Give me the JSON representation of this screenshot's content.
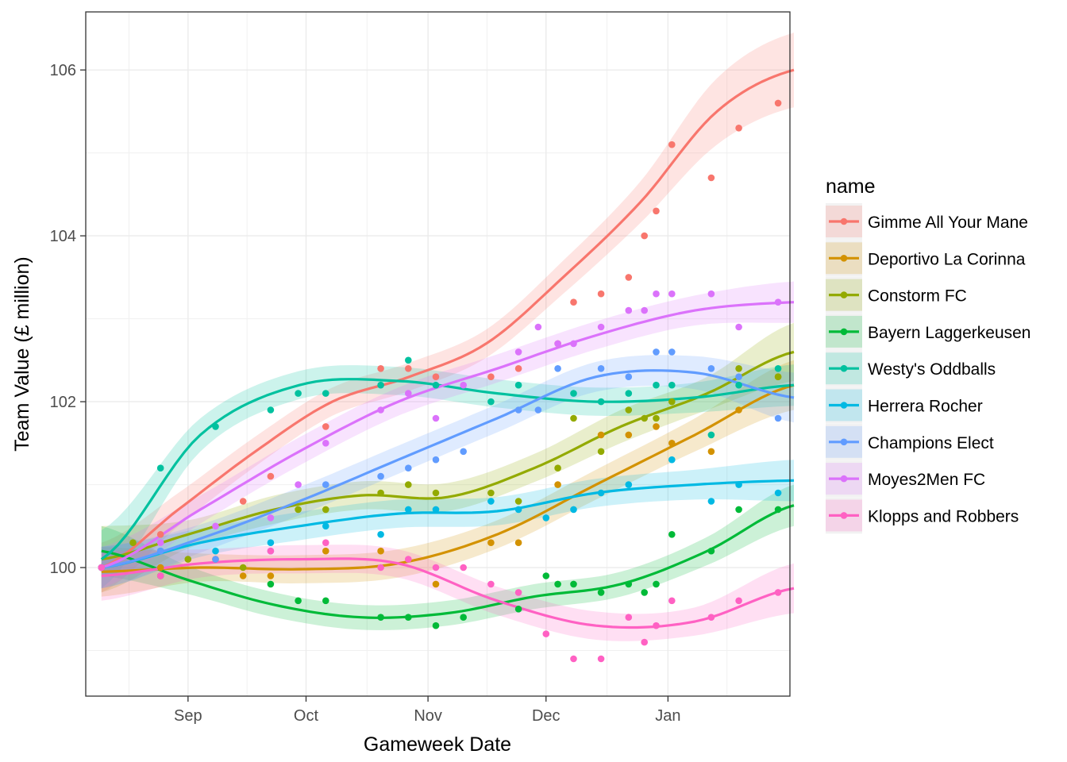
{
  "chart_data": {
    "type": "scatter",
    "title": "",
    "xlabel": "Gameweek Date",
    "ylabel": "Team Value (£ million)",
    "x_axis": {
      "type": "date",
      "range": [
        "2018-08-06",
        "2019-02-01"
      ],
      "ticks": [
        {
          "date": "2018-09-01",
          "label": "Sep"
        },
        {
          "date": "2018-10-01",
          "label": "Oct"
        },
        {
          "date": "2018-11-01",
          "label": "Nov"
        },
        {
          "date": "2018-12-01",
          "label": "Dec"
        },
        {
          "date": "2019-01-01",
          "label": "Jan"
        }
      ]
    },
    "y_axis": {
      "range": [
        98.45,
        106.7
      ],
      "ticks": [
        100,
        102,
        104,
        106
      ]
    },
    "grid": true,
    "smoothing": "loess with shaded confidence band",
    "legend": {
      "title": "name",
      "position": "right"
    },
    "x": [
      "2018-08-10",
      "2018-08-18",
      "2018-08-25",
      "2018-09-01",
      "2018-09-08",
      "2018-09-15",
      "2018-09-22",
      "2018-09-29",
      "2018-10-06",
      "2018-10-13",
      "2018-10-20",
      "2018-10-27",
      "2018-11-03",
      "2018-11-10",
      "2018-11-17",
      "2018-11-24",
      "2018-11-29",
      "2018-12-04",
      "2018-12-08",
      "2018-12-15",
      "2018-12-22",
      "2018-12-26",
      "2018-12-29",
      "2019-01-02",
      "2019-01-12",
      "2019-01-19",
      "2019-01-29",
      "2019-02-02"
    ],
    "series": [
      {
        "name": "Gimme All Your Mane",
        "color": "#F8766D",
        "points": [
          [
            "2018-08-10",
            100.0
          ],
          [
            "2018-08-25",
            100.4
          ],
          [
            "2018-09-15",
            100.8
          ],
          [
            "2018-09-22",
            101.1
          ],
          [
            "2018-10-06",
            101.7
          ],
          [
            "2018-10-20",
            102.4
          ],
          [
            "2018-10-27",
            102.4
          ],
          [
            "2018-11-03",
            102.3
          ],
          [
            "2018-11-17",
            102.3
          ],
          [
            "2018-11-24",
            102.4
          ],
          [
            "2018-12-04",
            102.7
          ],
          [
            "2018-12-08",
            103.2
          ],
          [
            "2018-12-15",
            103.3
          ],
          [
            "2018-12-22",
            103.5
          ],
          [
            "2018-12-26",
            104.0
          ],
          [
            "2018-12-29",
            104.3
          ],
          [
            "2019-01-02",
            105.1
          ],
          [
            "2019-01-12",
            104.7
          ],
          [
            "2019-01-19",
            105.3
          ],
          [
            "2019-01-29",
            105.6
          ]
        ],
        "smooth": [
          [
            100.0,
            0.3
          ],
          [
            100.7,
            0.2
          ],
          [
            101.4,
            0.18
          ],
          [
            102.0,
            0.17
          ],
          [
            102.3,
            0.17
          ],
          [
            102.7,
            0.17
          ],
          [
            103.5,
            0.2
          ],
          [
            104.4,
            0.25
          ],
          [
            105.5,
            0.4
          ],
          [
            106.0,
            0.45
          ]
        ]
      },
      {
        "name": "Deportivo La Corinna",
        "color": "#D39200",
        "points": [
          [
            "2018-08-10",
            100.0
          ],
          [
            "2018-08-25",
            100.0
          ],
          [
            "2018-09-08",
            100.1
          ],
          [
            "2018-09-15",
            99.9
          ],
          [
            "2018-09-22",
            99.9
          ],
          [
            "2018-10-06",
            100.2
          ],
          [
            "2018-10-20",
            100.2
          ],
          [
            "2018-11-03",
            99.8
          ],
          [
            "2018-11-17",
            100.3
          ],
          [
            "2018-11-24",
            100.3
          ],
          [
            "2018-12-04",
            101.0
          ],
          [
            "2018-12-15",
            101.6
          ],
          [
            "2018-12-22",
            101.6
          ],
          [
            "2018-12-29",
            101.7
          ],
          [
            "2019-01-02",
            101.5
          ],
          [
            "2019-01-12",
            101.4
          ],
          [
            "2019-01-19",
            101.9
          ],
          [
            "2019-01-29",
            102.3
          ]
        ],
        "smooth": [
          [
            99.95,
            0.3
          ],
          [
            100.0,
            0.17
          ],
          [
            99.98,
            0.17
          ],
          [
            100.05,
            0.17
          ],
          [
            100.4,
            0.17
          ],
          [
            101.0,
            0.18
          ],
          [
            101.6,
            0.2
          ],
          [
            102.2,
            0.3
          ]
        ]
      },
      {
        "name": "Constorm FC",
        "color": "#93AA00",
        "points": [
          [
            "2018-08-10",
            100.0
          ],
          [
            "2018-08-18",
            100.3
          ],
          [
            "2018-09-01",
            100.1
          ],
          [
            "2018-09-15",
            100.0
          ],
          [
            "2018-09-29",
            100.7
          ],
          [
            "2018-10-06",
            100.7
          ],
          [
            "2018-10-20",
            100.9
          ],
          [
            "2018-10-27",
            101.0
          ],
          [
            "2018-11-03",
            100.9
          ],
          [
            "2018-11-17",
            100.9
          ],
          [
            "2018-11-24",
            100.8
          ],
          [
            "2018-12-04",
            101.2
          ],
          [
            "2018-12-08",
            101.8
          ],
          [
            "2018-12-15",
            101.4
          ],
          [
            "2018-12-22",
            101.9
          ],
          [
            "2018-12-26",
            101.8
          ],
          [
            "2018-12-29",
            101.8
          ],
          [
            "2019-01-02",
            102.0
          ],
          [
            "2019-01-19",
            102.4
          ],
          [
            "2019-01-29",
            102.3
          ]
        ],
        "smooth": [
          [
            100.1,
            0.4
          ],
          [
            100.4,
            0.17
          ],
          [
            100.7,
            0.17
          ],
          [
            100.87,
            0.17
          ],
          [
            100.85,
            0.17
          ],
          [
            101.2,
            0.17
          ],
          [
            101.7,
            0.2
          ],
          [
            102.1,
            0.2
          ],
          [
            102.6,
            0.35
          ]
        ]
      },
      {
        "name": "Bayern Laggerkeusen",
        "color": "#00BA38",
        "points": [
          [
            "2018-08-10",
            100.0
          ],
          [
            "2018-08-25",
            99.9
          ],
          [
            "2018-09-22",
            99.8
          ],
          [
            "2018-09-29",
            99.6
          ],
          [
            "2018-10-06",
            99.6
          ],
          [
            "2018-10-20",
            99.4
          ],
          [
            "2018-10-27",
            99.4
          ],
          [
            "2018-11-03",
            99.3
          ],
          [
            "2018-11-10",
            99.4
          ],
          [
            "2018-11-24",
            99.5
          ],
          [
            "2018-12-01",
            99.9
          ],
          [
            "2018-12-04",
            99.8
          ],
          [
            "2018-12-08",
            99.8
          ],
          [
            "2018-12-15",
            99.7
          ],
          [
            "2018-12-22",
            99.8
          ],
          [
            "2018-12-26",
            99.7
          ],
          [
            "2018-12-29",
            99.8
          ],
          [
            "2019-01-02",
            100.4
          ],
          [
            "2019-01-12",
            100.2
          ],
          [
            "2019-01-19",
            100.7
          ],
          [
            "2019-01-29",
            100.7
          ]
        ],
        "smooth": [
          [
            100.2,
            0.3
          ],
          [
            99.85,
            0.17
          ],
          [
            99.55,
            0.15
          ],
          [
            99.4,
            0.15
          ],
          [
            99.45,
            0.15
          ],
          [
            99.65,
            0.15
          ],
          [
            99.8,
            0.15
          ],
          [
            100.2,
            0.17
          ],
          [
            100.75,
            0.25
          ]
        ]
      },
      {
        "name": "Westy's Oddballs",
        "color": "#00C19F",
        "points": [
          [
            "2018-08-10",
            100.0
          ],
          [
            "2018-08-25",
            101.2
          ],
          [
            "2018-09-08",
            101.7
          ],
          [
            "2018-09-22",
            101.9
          ],
          [
            "2018-09-29",
            102.1
          ],
          [
            "2018-10-06",
            102.1
          ],
          [
            "2018-10-20",
            102.2
          ],
          [
            "2018-10-27",
            102.5
          ],
          [
            "2018-11-03",
            102.2
          ],
          [
            "2018-11-17",
            102.0
          ],
          [
            "2018-11-24",
            102.2
          ],
          [
            "2018-12-08",
            102.1
          ],
          [
            "2018-12-15",
            102.0
          ],
          [
            "2018-12-22",
            102.1
          ],
          [
            "2018-12-29",
            102.2
          ],
          [
            "2019-01-02",
            102.2
          ],
          [
            "2019-01-12",
            101.6
          ],
          [
            "2019-01-19",
            102.2
          ],
          [
            "2019-01-29",
            102.4
          ]
        ],
        "smooth": [
          [
            100.1,
            0.35
          ],
          [
            101.6,
            0.2
          ],
          [
            102.2,
            0.17
          ],
          [
            102.25,
            0.17
          ],
          [
            102.1,
            0.17
          ],
          [
            102.0,
            0.17
          ],
          [
            102.05,
            0.18
          ],
          [
            102.2,
            0.25
          ]
        ]
      },
      {
        "name": "Herrera Rocher",
        "color": "#00B9E3",
        "points": [
          [
            "2018-08-10",
            100.0
          ],
          [
            "2018-08-25",
            100.2
          ],
          [
            "2018-09-08",
            100.2
          ],
          [
            "2018-09-22",
            100.3
          ],
          [
            "2018-10-06",
            100.5
          ],
          [
            "2018-10-20",
            100.4
          ],
          [
            "2018-10-27",
            100.7
          ],
          [
            "2018-11-03",
            100.7
          ],
          [
            "2018-11-17",
            100.8
          ],
          [
            "2018-11-24",
            100.7
          ],
          [
            "2018-12-01",
            100.6
          ],
          [
            "2018-12-08",
            100.7
          ],
          [
            "2018-12-15",
            100.9
          ],
          [
            "2018-12-22",
            101.0
          ],
          [
            "2019-01-02",
            101.3
          ],
          [
            "2019-01-12",
            100.8
          ],
          [
            "2019-01-19",
            101.0
          ],
          [
            "2019-01-29",
            100.9
          ]
        ],
        "smooth": [
          [
            100.0,
            0.25
          ],
          [
            100.3,
            0.17
          ],
          [
            100.5,
            0.17
          ],
          [
            100.65,
            0.17
          ],
          [
            100.68,
            0.17
          ],
          [
            100.9,
            0.17
          ],
          [
            101.0,
            0.18
          ],
          [
            101.05,
            0.25
          ]
        ]
      },
      {
        "name": "Champions Elect",
        "color": "#619CFF",
        "points": [
          [
            "2018-08-10",
            100.0
          ],
          [
            "2018-08-25",
            100.2
          ],
          [
            "2018-09-08",
            100.1
          ],
          [
            "2018-09-22",
            100.2
          ],
          [
            "2018-10-06",
            101.0
          ],
          [
            "2018-10-20",
            101.1
          ],
          [
            "2018-10-27",
            101.2
          ],
          [
            "2018-11-03",
            101.3
          ],
          [
            "2018-11-10",
            101.4
          ],
          [
            "2018-11-24",
            101.9
          ],
          [
            "2018-11-29",
            101.9
          ],
          [
            "2018-12-04",
            102.4
          ],
          [
            "2018-12-15",
            102.4
          ],
          [
            "2018-12-22",
            102.3
          ],
          [
            "2018-12-29",
            102.6
          ],
          [
            "2019-01-02",
            102.6
          ],
          [
            "2019-01-12",
            102.4
          ],
          [
            "2019-01-19",
            102.3
          ],
          [
            "2019-01-29",
            101.8
          ]
        ],
        "smooth": [
          [
            100.0,
            0.25
          ],
          [
            100.35,
            0.17
          ],
          [
            100.8,
            0.17
          ],
          [
            101.3,
            0.17
          ],
          [
            101.8,
            0.17
          ],
          [
            102.3,
            0.18
          ],
          [
            102.35,
            0.2
          ],
          [
            102.05,
            0.3
          ]
        ]
      },
      {
        "name": "Moyes2Men FC",
        "color": "#DB72FB",
        "points": [
          [
            "2018-08-10",
            100.0
          ],
          [
            "2018-08-25",
            100.3
          ],
          [
            "2018-09-08",
            100.5
          ],
          [
            "2018-09-22",
            100.6
          ],
          [
            "2018-09-29",
            101.0
          ],
          [
            "2018-10-06",
            101.5
          ],
          [
            "2018-10-20",
            101.9
          ],
          [
            "2018-10-27",
            102.1
          ],
          [
            "2018-11-03",
            101.8
          ],
          [
            "2018-11-10",
            102.2
          ],
          [
            "2018-11-24",
            102.6
          ],
          [
            "2018-11-29",
            102.9
          ],
          [
            "2018-12-04",
            102.7
          ],
          [
            "2018-12-08",
            102.7
          ],
          [
            "2018-12-15",
            102.9
          ],
          [
            "2018-12-22",
            103.1
          ],
          [
            "2018-12-26",
            103.1
          ],
          [
            "2018-12-29",
            103.3
          ],
          [
            "2019-01-02",
            103.3
          ],
          [
            "2019-01-12",
            103.3
          ],
          [
            "2019-01-19",
            102.9
          ],
          [
            "2019-01-29",
            103.2
          ]
        ],
        "smooth": [
          [
            100.0,
            0.25
          ],
          [
            100.7,
            0.17
          ],
          [
            101.4,
            0.17
          ],
          [
            102.0,
            0.17
          ],
          [
            102.4,
            0.17
          ],
          [
            102.8,
            0.17
          ],
          [
            103.1,
            0.18
          ],
          [
            103.2,
            0.25
          ]
        ]
      },
      {
        "name": "Klopps and Robbers",
        "color": "#FF61C3",
        "points": [
          [
            "2018-08-10",
            100.0
          ],
          [
            "2018-08-25",
            99.9
          ],
          [
            "2018-09-22",
            100.2
          ],
          [
            "2018-10-06",
            100.3
          ],
          [
            "2018-10-20",
            100.0
          ],
          [
            "2018-10-27",
            100.1
          ],
          [
            "2018-11-03",
            100.0
          ],
          [
            "2018-11-10",
            100.0
          ],
          [
            "2018-11-17",
            99.8
          ],
          [
            "2018-11-24",
            99.7
          ],
          [
            "2018-12-01",
            99.2
          ],
          [
            "2018-12-08",
            98.9
          ],
          [
            "2018-12-15",
            98.9
          ],
          [
            "2018-12-22",
            99.4
          ],
          [
            "2018-12-26",
            99.1
          ],
          [
            "2018-12-29",
            99.3
          ],
          [
            "2019-01-02",
            99.6
          ],
          [
            "2019-01-12",
            99.4
          ],
          [
            "2019-01-19",
            99.6
          ],
          [
            "2019-01-29",
            99.7
          ]
        ],
        "smooth": [
          [
            99.9,
            0.3
          ],
          [
            100.05,
            0.17
          ],
          [
            100.1,
            0.17
          ],
          [
            100.05,
            0.17
          ],
          [
            99.6,
            0.17
          ],
          [
            99.3,
            0.17
          ],
          [
            99.35,
            0.17
          ],
          [
            99.75,
            0.3
          ]
        ]
      }
    ]
  }
}
